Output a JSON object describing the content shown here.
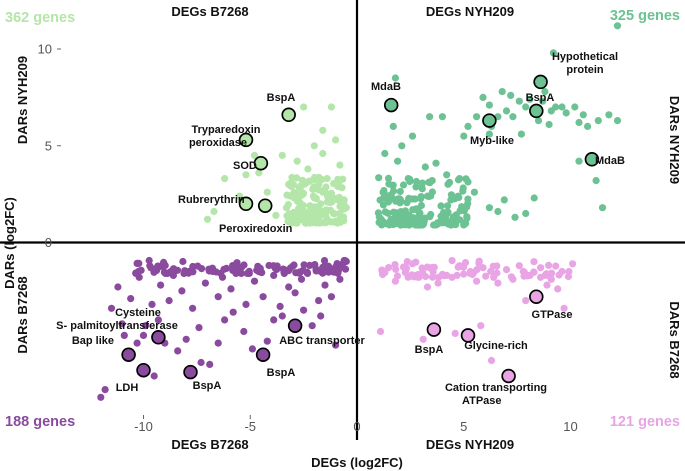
{
  "chart_data": {
    "type": "scatter",
    "xlabel": "DEGs (log2FC)",
    "ylabel": "DARs (log2FC)",
    "xlim": [
      -12.3,
      12.6
    ],
    "ylim": [
      -8.3,
      11.7
    ],
    "xticks": [
      -10,
      -5,
      0,
      5,
      10
    ],
    "yticks": [
      0,
      5,
      10
    ],
    "grid": false,
    "quadrant_titles": {
      "top_left": "DEGs B7268",
      "top_right": "DEGs NYH209",
      "bottom_left": "DEGs B7268",
      "bottom_right": "DEGs NYH209",
      "right_upper": "DARs NYH209",
      "right_lower": "DARs B7268",
      "left_upper": "DARs NYH209",
      "left_lower": "DARs B7268"
    },
    "series": [
      {
        "name": "DEGs B7268 / DARs NYH209",
        "count_label": "362 genes",
        "color": "#b3e6a8",
        "points": [
          [
            -2.5,
            7.0
          ],
          [
            -1.2,
            7.0
          ],
          [
            -1.0,
            5.3
          ],
          [
            -1.6,
            5.8
          ],
          [
            -2.0,
            5.0
          ],
          [
            -3.5,
            4.5
          ],
          [
            -2.8,
            4.2
          ],
          [
            -1.6,
            4.6
          ],
          [
            -4.8,
            4.5
          ],
          [
            -6.2,
            3.3
          ],
          [
            -5.2,
            3.5
          ],
          [
            -4.6,
            3.6
          ],
          [
            -2.3,
            3.8
          ],
          [
            -1.4,
            3.3
          ],
          [
            -0.8,
            4.0
          ],
          [
            -4.2,
            2.6
          ],
          [
            -2.7,
            2.8
          ],
          [
            -3.2,
            3.0
          ],
          [
            -5.5,
            2.4
          ],
          [
            -7.0,
            1.2
          ],
          [
            -6.7,
            1.6
          ],
          [
            -3.8,
            1.4
          ],
          [
            -3.3,
            1.8
          ],
          [
            -1.6,
            2.6
          ],
          [
            -2.0,
            2.3
          ],
          [
            -0.9,
            2.9
          ],
          [
            -0.6,
            2.2
          ],
          [
            -2.6,
            1.6
          ],
          [
            -3.1,
            1.1
          ],
          [
            -1.1,
            1.5
          ],
          [
            -0.7,
            1.2
          ],
          [
            -2.2,
            1.9
          ],
          [
            -0.9,
            2.2
          ],
          [
            -1.3,
            2.5
          ],
          [
            -1.7,
            2.0
          ],
          [
            -0.5,
            1.8
          ]
        ],
        "cluster": {
          "x": [
            -3.3,
            -0.5
          ],
          "y": [
            1.0,
            3.4
          ],
          "n": 140
        }
      },
      {
        "name": "DEGs NYH209 / DARs NYH209",
        "count_label": "325 genes",
        "color": "#6cc293",
        "points": [
          [
            12.2,
            11.2
          ],
          [
            9.2,
            9.8
          ],
          [
            8.8,
            7.8
          ],
          [
            7.6,
            7.3
          ],
          [
            6.8,
            7.8
          ],
          [
            6.2,
            7.1
          ],
          [
            7.2,
            7.6
          ],
          [
            8.1,
            7.4
          ],
          [
            8.7,
            7.3
          ],
          [
            9.1,
            6.8
          ],
          [
            9.6,
            7.0
          ],
          [
            9.3,
            7.0
          ],
          [
            9.8,
            6.7
          ],
          [
            10.6,
            6.6
          ],
          [
            11.3,
            6.3
          ],
          [
            10.8,
            6.0
          ],
          [
            11.8,
            6.6
          ],
          [
            12.2,
            6.3
          ],
          [
            7.3,
            6.5
          ],
          [
            6.6,
            6.5
          ],
          [
            5.6,
            6.5
          ],
          [
            5.2,
            6.0
          ],
          [
            5.9,
            7.5
          ],
          [
            7.0,
            6.8
          ],
          [
            6.3,
            6.0
          ],
          [
            7.9,
            7.0
          ],
          [
            8.5,
            6.3
          ],
          [
            10.2,
            7.0
          ],
          [
            10.4,
            6.2
          ],
          [
            9.0,
            6.1
          ],
          [
            7.7,
            5.6
          ],
          [
            6.2,
            5.6
          ],
          [
            5.0,
            5.5
          ],
          [
            4.0,
            6.5
          ],
          [
            1.8,
            8.5
          ],
          [
            1.7,
            6.0
          ],
          [
            2.6,
            5.5
          ],
          [
            3.4,
            6.5
          ],
          [
            2.1,
            5.0
          ],
          [
            1.3,
            4.6
          ],
          [
            1.9,
            4.2
          ],
          [
            3.2,
            3.9
          ],
          [
            4.2,
            3.5
          ],
          [
            3.7,
            4.1
          ],
          [
            4.8,
            3.3
          ],
          [
            5.5,
            2.6
          ],
          [
            6.2,
            1.8
          ],
          [
            6.6,
            1.6
          ],
          [
            7.9,
            1.5
          ],
          [
            8.3,
            2.3
          ],
          [
            10.4,
            4.2
          ],
          [
            11.2,
            3.2
          ],
          [
            11.5,
            1.8
          ],
          [
            4.4,
            2.2
          ],
          [
            3.3,
            2.4
          ],
          [
            2.4,
            3.3
          ],
          [
            6.9,
            2.2
          ],
          [
            7.4,
            1.3
          ]
        ],
        "cluster": {
          "x": [
            1.0,
            5.2
          ],
          "y": [
            0.9,
            3.4
          ],
          "n": 160
        }
      },
      {
        "name": "DEGs B7268 / DARs B7268",
        "count_label": "188 genes",
        "color": "#8a4a9e",
        "points": [
          [
            -11.5,
            -3.4
          ],
          [
            -11.0,
            -4.2
          ],
          [
            -10.9,
            -4.8
          ],
          [
            -10.7,
            -5.7
          ],
          [
            -10.3,
            -5.2
          ],
          [
            -10.0,
            -4.8
          ],
          [
            -9.9,
            -4.3
          ],
          [
            -9.3,
            -4.0
          ],
          [
            -9.0,
            -5.2
          ],
          [
            -8.4,
            -5.6
          ],
          [
            -8.0,
            -5.0
          ],
          [
            -7.4,
            -4.4
          ],
          [
            -7.3,
            -6.2
          ],
          [
            -6.5,
            -5.2
          ],
          [
            -6.2,
            -4.0
          ],
          [
            -5.8,
            -3.6
          ],
          [
            -5.3,
            -4.6
          ],
          [
            -4.9,
            -5.5
          ],
          [
            -4.2,
            -5.1
          ],
          [
            -3.9,
            -4.0
          ],
          [
            -3.6,
            -3.3
          ],
          [
            -3.5,
            -3.8
          ],
          [
            -2.5,
            -3.5
          ],
          [
            -2.1,
            -4.3
          ],
          [
            -1.7,
            -3.8
          ],
          [
            -1.2,
            -2.8
          ],
          [
            -1.0,
            -5.3
          ],
          [
            -9.5,
            -6.9
          ],
          [
            -6.9,
            -6.3
          ],
          [
            -11.8,
            -7.6
          ],
          [
            -12.0,
            -8.0
          ],
          [
            -9.6,
            -3.2
          ],
          [
            -8.8,
            -3.0
          ],
          [
            -7.7,
            -3.4
          ],
          [
            -6.5,
            -2.8
          ],
          [
            -5.2,
            -3.2
          ],
          [
            -4.4,
            -2.8
          ],
          [
            -2.9,
            -2.6
          ],
          [
            -1.8,
            -3.0
          ],
          [
            -10.6,
            -2.9
          ],
          [
            -8.2,
            -2.5
          ],
          [
            -5.9,
            -2.4
          ],
          [
            -3.2,
            -2.3
          ],
          [
            -9.2,
            -2.2
          ],
          [
            -7.1,
            -2.1
          ],
          [
            -4.8,
            -2.0
          ],
          [
            -2.6,
            -1.9
          ],
          [
            -1.5,
            -2.2
          ],
          [
            -11.2,
            -2.3
          ],
          [
            -10.2,
            -1.8
          ],
          [
            -8.6,
            -1.7
          ],
          [
            -6.3,
            -1.8
          ],
          [
            -3.9,
            -1.7
          ],
          [
            -0.8,
            -1.9
          ]
        ],
        "cluster": {
          "x": [
            -10.5,
            -0.5
          ],
          "y": [
            -1.6,
            -0.9
          ],
          "n": 120
        }
      },
      {
        "name": "DEGs NYH209 / DARs B7268",
        "count_label": "121 genes",
        "color": "#e8a4e4",
        "points": [
          [
            1.1,
            -4.6
          ],
          [
            3.1,
            -5.0
          ],
          [
            4.6,
            -4.7
          ],
          [
            5.8,
            -4.3
          ],
          [
            6.3,
            -6.1
          ],
          [
            7.9,
            -3.0
          ],
          [
            9.7,
            -3.4
          ],
          [
            1.2,
            -1.6
          ],
          [
            1.8,
            -2.0
          ],
          [
            2.3,
            -1.4
          ],
          [
            2.9,
            -1.8
          ],
          [
            3.5,
            -1.3
          ],
          [
            4.2,
            -1.7
          ],
          [
            4.8,
            -1.2
          ],
          [
            5.3,
            -1.6
          ],
          [
            5.9,
            -1.3
          ],
          [
            6.4,
            -1.8
          ],
          [
            7.0,
            -1.4
          ],
          [
            7.6,
            -1.2
          ],
          [
            8.1,
            -1.7
          ],
          [
            8.6,
            -1.3
          ],
          [
            9.1,
            -1.9
          ],
          [
            9.6,
            -1.5
          ],
          [
            10.1,
            -1.1
          ],
          [
            3.8,
            -2.1
          ],
          [
            6.6,
            -2.1
          ],
          [
            8.9,
            -2.2
          ],
          [
            9.4,
            -2.4
          ],
          [
            2.6,
            -1.1
          ],
          [
            5.6,
            -2.0
          ],
          [
            7.3,
            -1.9
          ],
          [
            3.3,
            -2.3
          ]
        ],
        "cluster": {
          "x": [
            1.0,
            10.0
          ],
          "y": [
            -1.8,
            -0.9
          ],
          "n": 70
        }
      }
    ],
    "annotations": [
      {
        "label": "BspA",
        "x": -3.2,
        "y": 6.6,
        "series": 0
      },
      {
        "label": "Tryparedoxin peroxidase",
        "x": -5.2,
        "y": 5.3,
        "series": 0
      },
      {
        "label": "SOD",
        "x": -4.5,
        "y": 4.1,
        "series": 0
      },
      {
        "label": "Rubrerythrin",
        "x": -5.2,
        "y": 2.0,
        "series": 0
      },
      {
        "label": "Peroxiredoxin",
        "x": -4.3,
        "y": 1.9,
        "series": 0
      },
      {
        "label": "MdaB",
        "x": 1.6,
        "y": 7.1,
        "series": 1
      },
      {
        "label": "Hypothetical protein",
        "x": 8.6,
        "y": 8.3,
        "series": 1
      },
      {
        "label": "BspA",
        "x": 8.4,
        "y": 6.8,
        "series": 1
      },
      {
        "label": "Myb-like",
        "x": 6.2,
        "y": 6.3,
        "series": 1
      },
      {
        "label": "MdaB",
        "x": 11.0,
        "y": 4.3,
        "series": 1
      },
      {
        "label": "Cysteine S- palmitoyltransferase",
        "x": -9.3,
        "y": -4.9,
        "series": 2
      },
      {
        "label": "Bap like",
        "x": -10.7,
        "y": -5.8,
        "series": 2
      },
      {
        "label": "LDH",
        "x": -10.0,
        "y": -6.6,
        "series": 2
      },
      {
        "label": "BspA",
        "x": -7.8,
        "y": -6.7,
        "series": 2
      },
      {
        "label": "BspA",
        "x": -4.4,
        "y": -5.8,
        "series": 2
      },
      {
        "label": "ABC transporter",
        "x": -2.9,
        "y": -4.3,
        "series": 2
      },
      {
        "label": "GTPase",
        "x": 8.4,
        "y": -2.8,
        "series": 3
      },
      {
        "label": "BspA",
        "x": 3.6,
        "y": -4.5,
        "series": 3
      },
      {
        "label": "Glycine-rich",
        "x": 5.2,
        "y": -4.8,
        "series": 3
      },
      {
        "label": "Cation transporting ATPase",
        "x": 7.1,
        "y": -6.9,
        "series": 3
      }
    ]
  }
}
